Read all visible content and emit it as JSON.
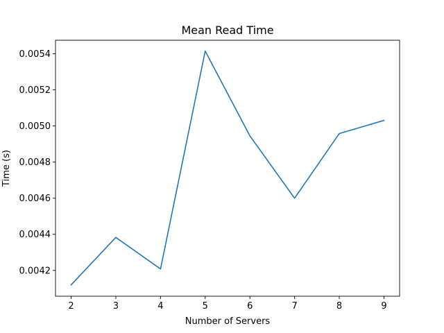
{
  "chart_data": {
    "type": "line",
    "title": "Mean Read Time",
    "xlabel": "Number of Servers",
    "ylabel": "Time (s)",
    "x": [
      2,
      3,
      4,
      5,
      6,
      7,
      8,
      9
    ],
    "series": [
      {
        "values": [
          0.00412,
          0.004383,
          0.004208,
          0.005415,
          0.004945,
          0.0046,
          0.004958,
          0.005031
        ]
      }
    ],
    "xlim": [
      1.65,
      9.35
    ],
    "ylim": [
      0.004057,
      0.005475
    ],
    "xticks": [
      2,
      3,
      4,
      5,
      6,
      7,
      8,
      9
    ],
    "yticks": [
      0.0042,
      0.0044,
      0.0046,
      0.0048,
      0.005,
      0.0052,
      0.0054
    ],
    "ytick_labels": [
      "0.0042",
      "0.0044",
      "0.0046",
      "0.0048",
      "0.0050",
      "0.0052",
      "0.0054"
    ],
    "grid": false,
    "legend": "none",
    "line_color": "#1f77b4"
  }
}
